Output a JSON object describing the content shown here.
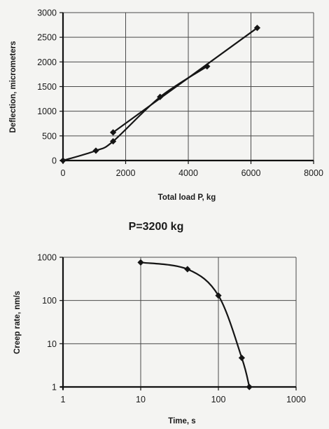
{
  "caption": "P=3200 kg",
  "chart_data": [
    {
      "type": "line",
      "xlabel": "Total load P, kg",
      "ylabel": "Deflection, micrometers",
      "xlim": [
        0,
        8000
      ],
      "ylim": [
        0,
        3000
      ],
      "x_ticks": [
        0,
        2000,
        4000,
        6000,
        8000
      ],
      "y_ticks": [
        0,
        500,
        1000,
        1500,
        2000,
        2500,
        3000
      ],
      "x_tick_labels": [
        "0",
        "2000",
        "4000",
        "6000",
        "8000"
      ],
      "y_tick_labels": [
        "0",
        "500",
        "1000",
        "1500",
        "2000",
        "2500",
        "3000"
      ],
      "grid": true,
      "series": [
        {
          "curve": [
            [
              0,
              0
            ],
            [
              1050,
              200
            ],
            [
              1600,
              390
            ],
            [
              3100,
              1290
            ],
            [
              4600,
              1910
            ]
          ],
          "smooth": true,
          "markers": [
            0,
            1,
            2,
            3,
            4
          ]
        },
        {
          "curve": [
            [
              1600,
              570
            ],
            [
              6200,
              2690
            ]
          ],
          "smooth": false,
          "markers": [
            0,
            1
          ]
        }
      ]
    },
    {
      "type": "line",
      "xlabel": "Time, s",
      "ylabel": "Creep rate, nm/s",
      "xscale": "log",
      "yscale": "log",
      "xlim": [
        1,
        1000
      ],
      "ylim": [
        1,
        1000
      ],
      "x_ticks": [
        1,
        10,
        100,
        1000
      ],
      "y_ticks": [
        1,
        10,
        100,
        1000
      ],
      "x_tick_labels": [
        "1",
        "10",
        "100",
        "1000"
      ],
      "y_tick_labels": [
        "1",
        "10",
        "100",
        "1000"
      ],
      "grid": true,
      "series": [
        {
          "curve": [
            [
              10,
              760
            ],
            [
              40,
              530
            ],
            [
              100,
              130
            ],
            [
              200,
              4.7
            ],
            [
              250,
              1
            ]
          ],
          "smooth": true,
          "markers": [
            0,
            1,
            2,
            3,
            4
          ]
        }
      ]
    }
  ]
}
